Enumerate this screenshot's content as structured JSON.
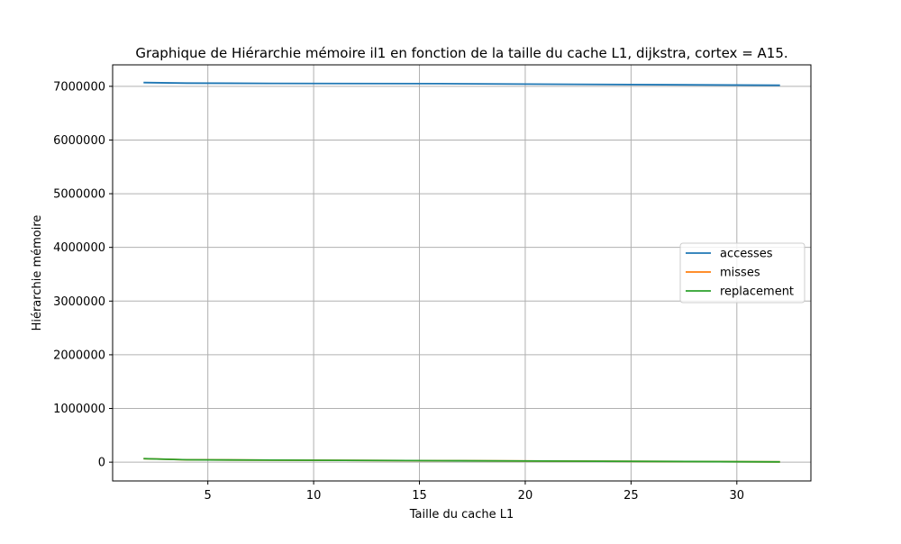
{
  "chart_data": {
    "type": "line",
    "title": "Graphique de Hiérarchie mémoire il1 en fonction de la taille du cache L1, dijkstra, cortex = A15.",
    "xlabel": "Taille du cache L1",
    "ylabel": "Hiérarchie mémoire",
    "xlim": [
      0.5,
      33.5
    ],
    "ylim": [
      -350000,
      7400000
    ],
    "x_ticks": [
      5,
      10,
      15,
      20,
      25,
      30
    ],
    "y_ticks": [
      0,
      1000000,
      2000000,
      3000000,
      4000000,
      5000000,
      6000000,
      7000000
    ],
    "grid": true,
    "legend_position": "center-right",
    "x": [
      2,
      4,
      8,
      16,
      32
    ],
    "series": [
      {
        "name": "accesses",
        "color": "#1f77b4",
        "values": [
          7070000,
          7060000,
          7055000,
          7050000,
          7020000
        ]
      },
      {
        "name": "misses",
        "color": "#ff7f0e",
        "values": [
          65000,
          45000,
          38000,
          28000,
          5000
        ]
      },
      {
        "name": "replacement",
        "color": "#2ca02c",
        "values": [
          65000,
          45000,
          38000,
          28000,
          5000
        ]
      }
    ]
  }
}
